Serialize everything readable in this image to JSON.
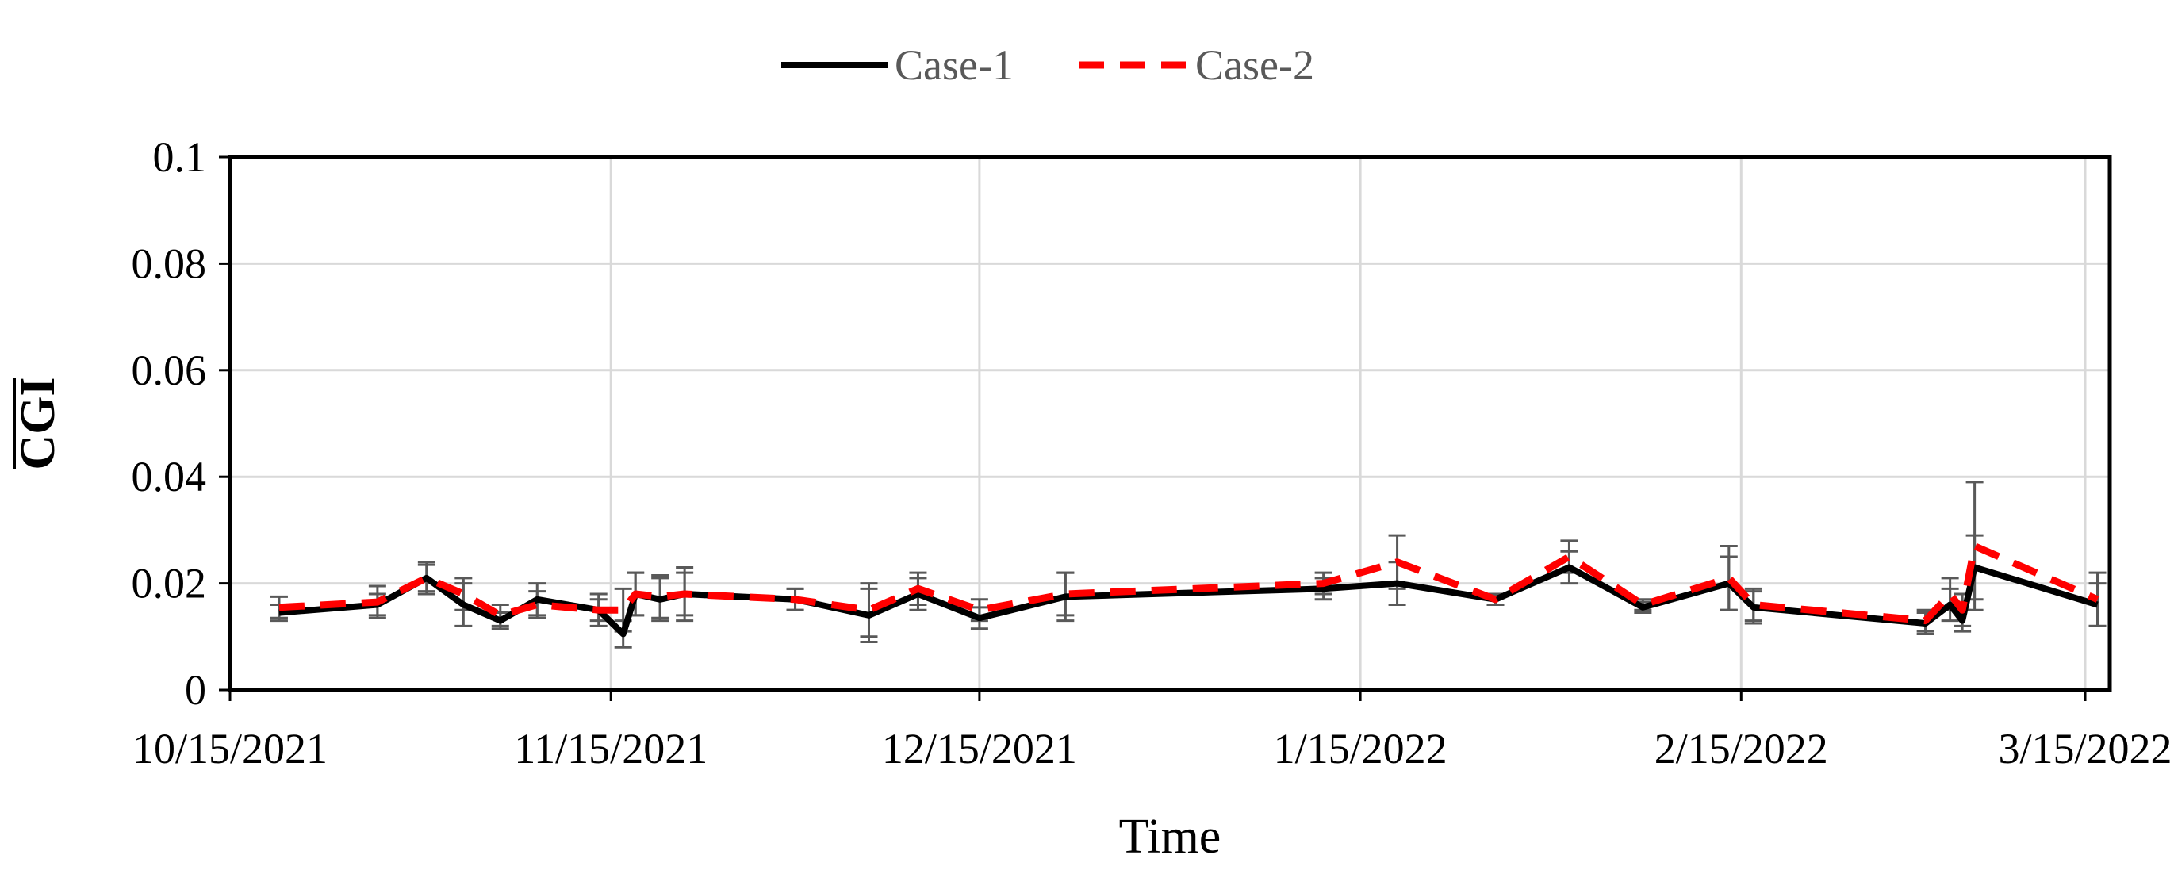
{
  "chart_data": {
    "type": "line",
    "title": "",
    "xlabel": "Time",
    "ylabel": "CGI",
    "ylabel_overline": true,
    "xlim": [
      "2021-10-15",
      "2022-03-17"
    ],
    "ylim": [
      0,
      0.1
    ],
    "grid": true,
    "legend_position": "top-center",
    "x_ticks": [
      "2021-10-15",
      "2021-11-15",
      "2021-12-15",
      "2022-01-15",
      "2022-02-15",
      "2022-03-15"
    ],
    "x_tick_labels": [
      "10/15/2021",
      "11/15/2021",
      "12/15/2021",
      "1/15/2022",
      "2/15/2022",
      "3/15/2022"
    ],
    "y_ticks": [
      0,
      0.02,
      0.04,
      0.06,
      0.08,
      0.1
    ],
    "y_tick_labels": [
      "0",
      "0.02",
      "0.04",
      "0.06",
      "0.08",
      "0.1"
    ],
    "x": [
      "2021-10-19",
      "2021-10-27",
      "2021-10-31",
      "2021-11-03",
      "2021-11-06",
      "2021-11-09",
      "2021-11-14",
      "2021-11-16",
      "2021-11-17",
      "2021-11-19",
      "2021-11-21",
      "2021-11-30",
      "2021-12-06",
      "2021-12-10",
      "2021-12-15",
      "2021-12-22",
      "2022-01-12",
      "2022-01-18",
      "2022-01-26",
      "2022-02-01",
      "2022-02-07",
      "2022-02-14",
      "2022-02-16",
      "2022-03-02",
      "2022-03-04",
      "2022-03-05",
      "2022-03-06",
      "2022-03-16"
    ],
    "series": [
      {
        "name": "Case-1",
        "color": "#000000",
        "dash": "solid",
        "values": [
          0.0145,
          0.016,
          0.021,
          0.016,
          0.013,
          0.017,
          0.015,
          0.0105,
          0.018,
          0.017,
          0.018,
          0.017,
          0.014,
          0.018,
          0.0135,
          0.0175,
          0.019,
          0.02,
          0.017,
          0.023,
          0.0155,
          0.02,
          0.0155,
          0.0125,
          0.016,
          0.013,
          0.023,
          0.016
        ],
        "error": [
          0.0015,
          0.002,
          0.003,
          0.004,
          0.0015,
          0.003,
          0.002,
          0.0025,
          0.004,
          0.004,
          0.005,
          0.002,
          0.005,
          0.003,
          0.002,
          0.0045,
          0.002,
          0.004,
          0.001,
          0.003,
          0.001,
          0.005,
          0.003,
          0.002,
          0.003,
          0.002,
          0.006,
          0.004
        ]
      },
      {
        "name": "Case-2",
        "color": "#ff0000",
        "dash": "dashed",
        "values": [
          0.0155,
          0.0165,
          0.021,
          0.018,
          0.014,
          0.016,
          0.015,
          0.015,
          0.018,
          0.0175,
          0.018,
          0.017,
          0.015,
          0.019,
          0.015,
          0.018,
          0.02,
          0.024,
          0.017,
          0.025,
          0.016,
          0.021,
          0.016,
          0.013,
          0.018,
          0.015,
          0.027,
          0.017
        ],
        "error": [
          0.002,
          0.003,
          0.0025,
          0.003,
          0.002,
          0.0025,
          0.003,
          0.004,
          0.004,
          0.004,
          0.004,
          0.002,
          0.005,
          0.003,
          0.002,
          0.004,
          0.002,
          0.005,
          0.001,
          0.003,
          0.001,
          0.006,
          0.003,
          0.002,
          0.003,
          0.003,
          0.012,
          0.005
        ]
      }
    ]
  }
}
